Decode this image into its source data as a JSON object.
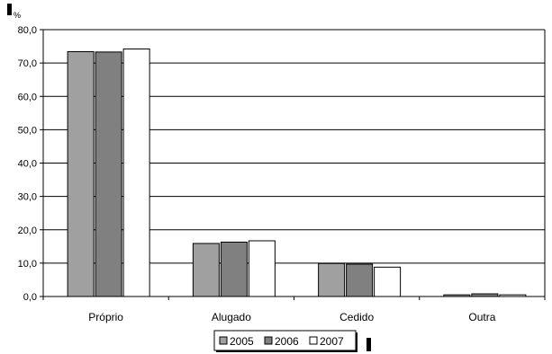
{
  "chart_data": {
    "type": "bar",
    "unit_label": "%",
    "categories": [
      "Próprio",
      "Alugado",
      "Cedido",
      "Outra"
    ],
    "series": [
      {
        "name": "2005",
        "color": "#a0a0a0",
        "values": [
          73.4,
          15.9,
          9.9,
          0.5
        ]
      },
      {
        "name": "2006",
        "color": "#808080",
        "values": [
          73.3,
          16.3,
          9.7,
          0.8
        ]
      },
      {
        "name": "2007",
        "color": "#ffffff",
        "values": [
          74.2,
          16.7,
          8.8,
          0.5
        ]
      }
    ],
    "ylim": [
      0,
      80
    ],
    "yticks": [
      "0,0",
      "10,0",
      "20,0",
      "30,0",
      "40,0",
      "50,0",
      "60,0",
      "70,0",
      "80,0"
    ],
    "grid": true,
    "legend_position": "bottom-center"
  }
}
